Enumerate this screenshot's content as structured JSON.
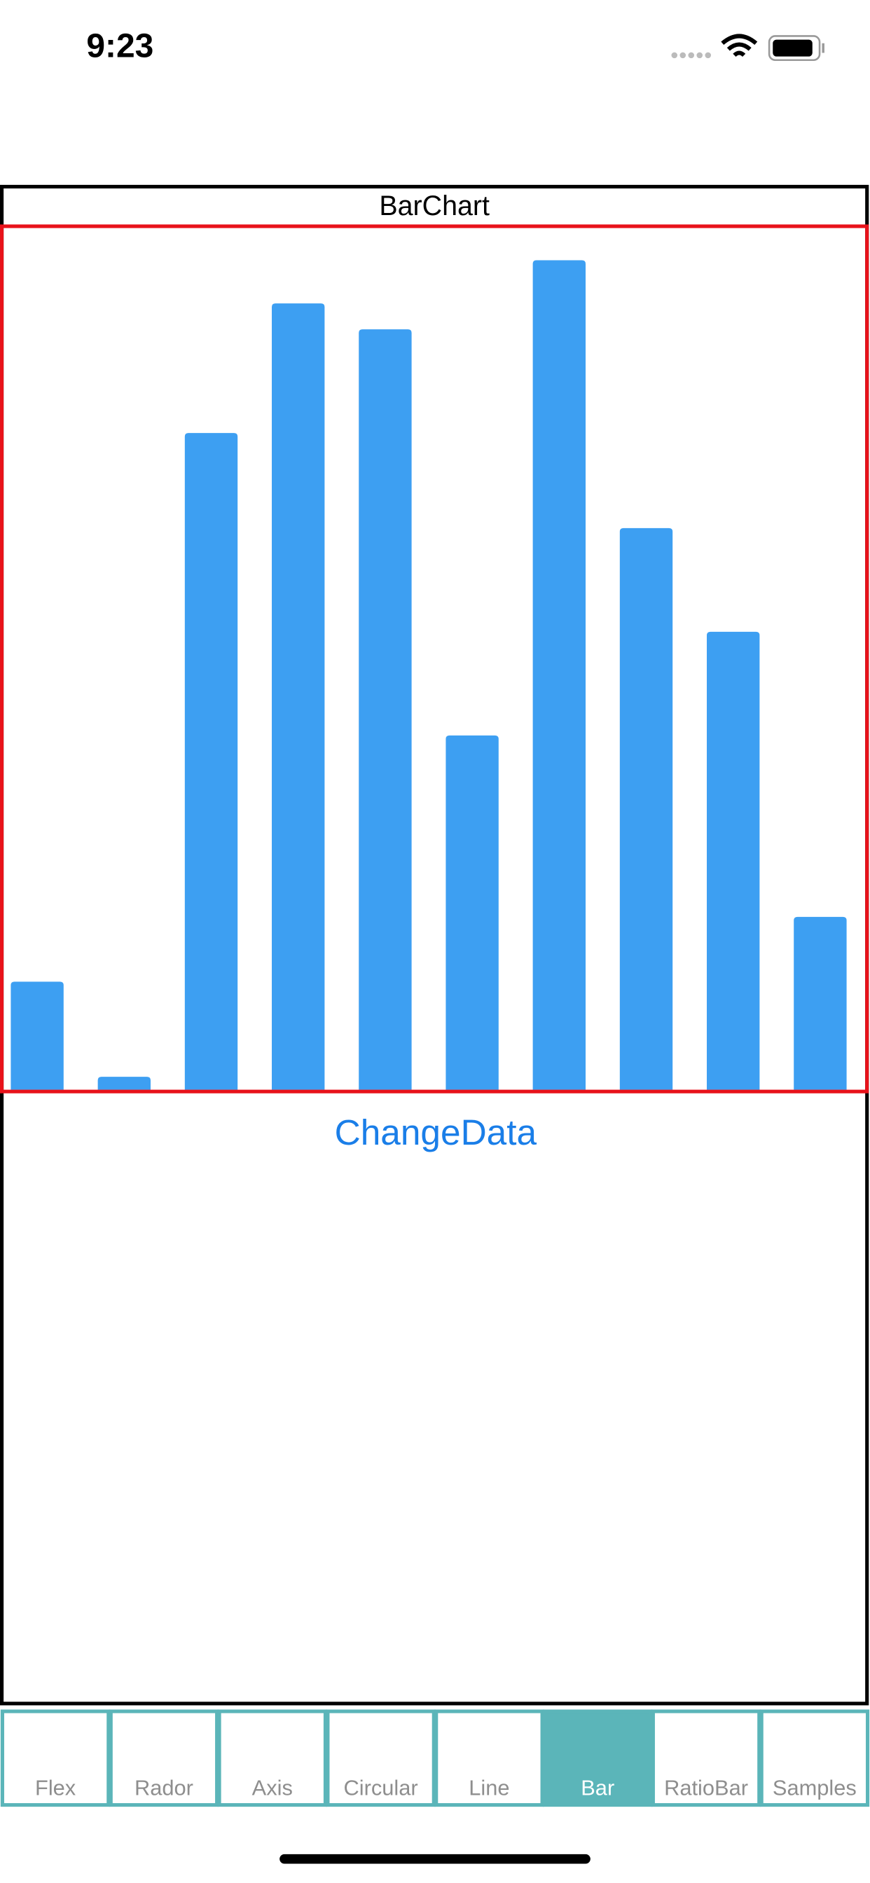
{
  "status": {
    "time": "9:23"
  },
  "chart_data": {
    "type": "bar",
    "title": "BarChart",
    "values": [
      12.5,
      1.5,
      76,
      91,
      88,
      41,
      96,
      65,
      53,
      20
    ],
    "color": "#3d9ff2",
    "ylim": [
      0,
      100
    ]
  },
  "button": "ChangeData",
  "tabs": [
    "Flex",
    "Rador",
    "Axis",
    "Circular",
    "Line",
    "Bar",
    "RatioBar",
    "Samples"
  ],
  "selected_tab": 5
}
